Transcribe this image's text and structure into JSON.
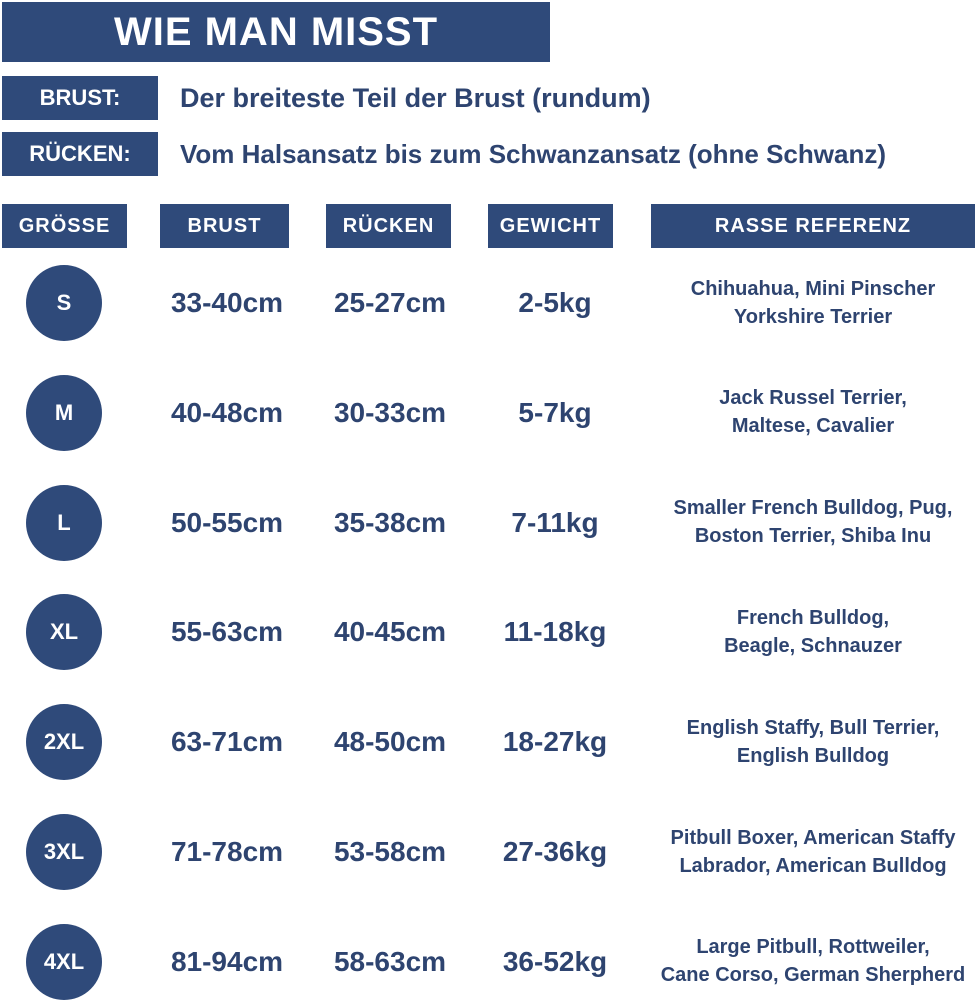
{
  "header": {
    "title": "WIE MAN MISST"
  },
  "definitions": [
    {
      "label": "BRUST:",
      "text": "Der breiteste Teil der Brust (rundum)"
    },
    {
      "label": "RÜCKEN:",
      "text": "Vom Halsansatz bis zum Schwanzansatz (ohne Schwanz)"
    }
  ],
  "table": {
    "headers": [
      "GRÖSSE",
      "BRUST",
      "RÜCKEN",
      "GEWICHT",
      "RASSE REFERENZ"
    ],
    "rows": [
      [
        "S",
        "33-40cm",
        "25-27cm",
        "2-5kg",
        [
          "Chihuahua, Mini Pinscher",
          "Yorkshire Terrier"
        ]
      ],
      [
        "M",
        "40-48cm",
        "30-33cm",
        "5-7kg",
        [
          "Jack Russel Terrier,",
          "Maltese, Cavalier"
        ]
      ],
      [
        "L",
        "50-55cm",
        "35-38cm",
        "7-11kg",
        [
          "Smaller French Bulldog, Pug,",
          "Boston Terrier, Shiba Inu"
        ]
      ],
      [
        "XL",
        "55-63cm",
        "40-45cm",
        "11-18kg",
        [
          "French Bulldog,",
          "Beagle, Schnauzer"
        ]
      ],
      [
        "2XL",
        "63-71cm",
        "48-50cm",
        "18-27kg",
        [
          "English Staffy, Bull Terrier,",
          "English Bulldog"
        ]
      ],
      [
        "3XL",
        "71-78cm",
        "53-58cm",
        "27-36kg",
        [
          "Pitbull Boxer, American Staffy",
          "Labrador, American Bulldog"
        ]
      ],
      [
        "4XL",
        "81-94cm",
        "58-63cm",
        "36-52kg",
        [
          "Large Pitbull, Rottweiler,",
          "Cane Corso, German Sherpherd"
        ]
      ]
    ]
  }
}
